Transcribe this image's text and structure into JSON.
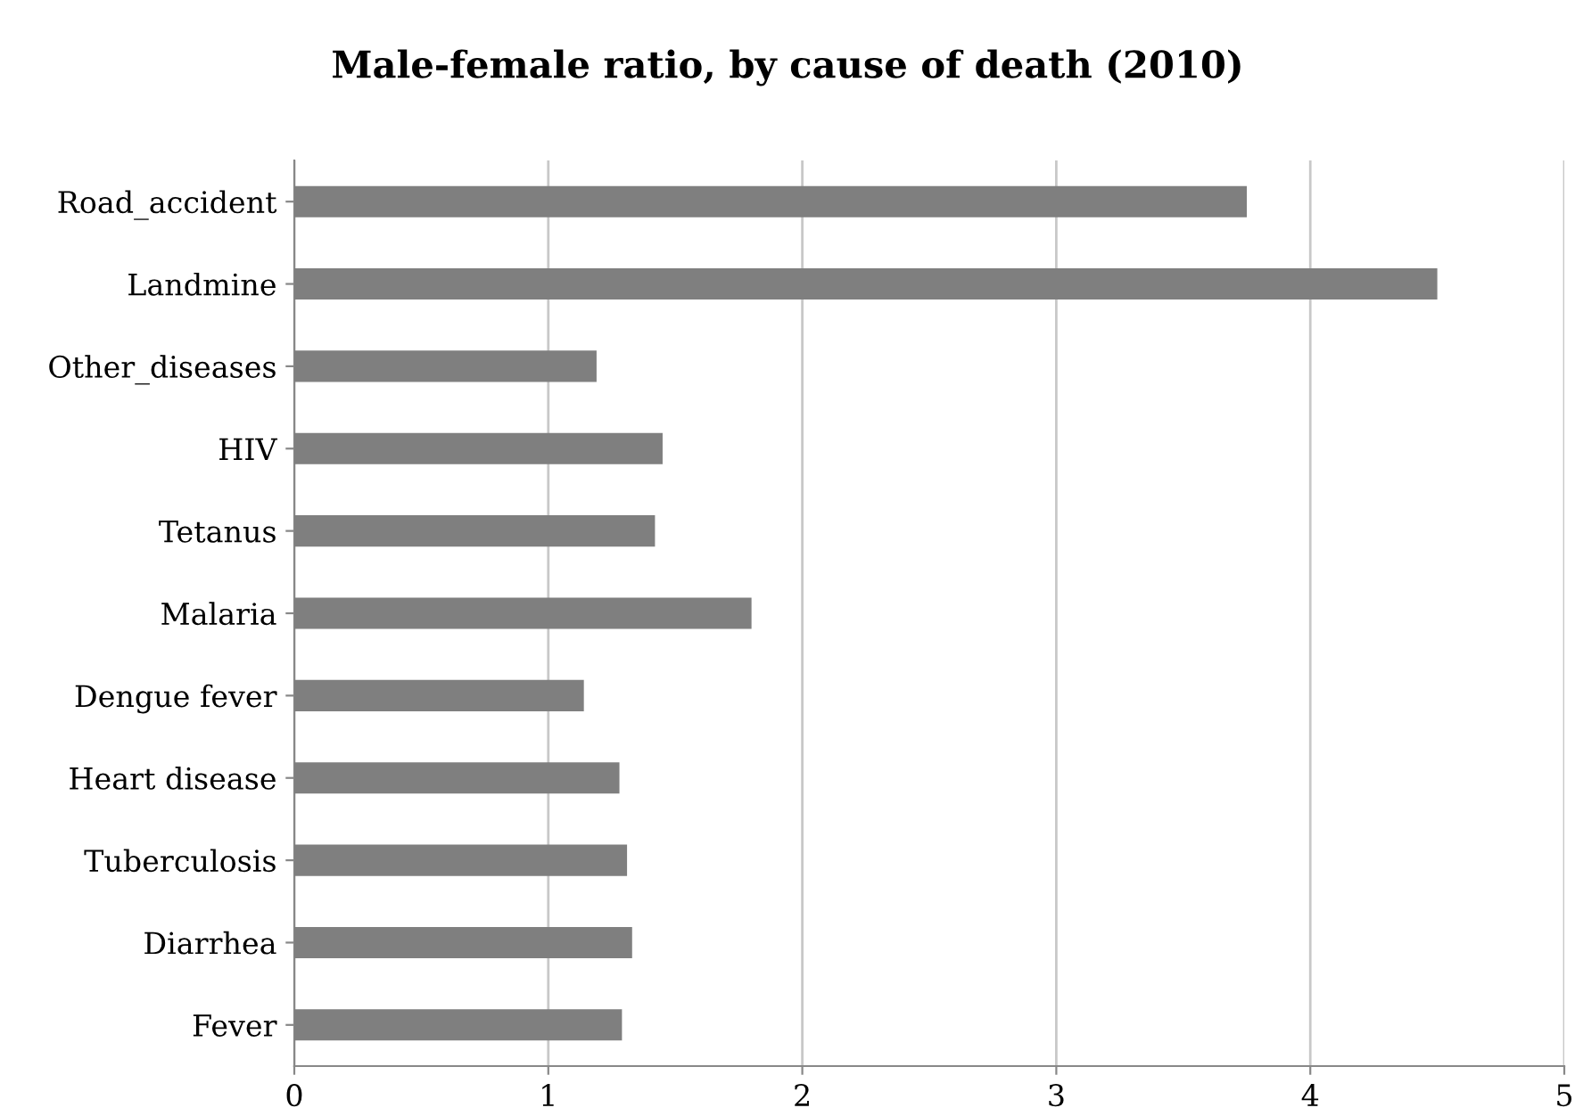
{
  "chart_data": {
    "type": "bar",
    "orientation": "horizontal",
    "title": "Male-female ratio, by cause of death (2010)",
    "categories": [
      "Road_accident",
      "Landmine",
      "Other_diseases",
      "HIV",
      "Tetanus",
      "Malaria",
      "Dengue fever",
      "Heart disease",
      "Tuberculosis",
      "Diarrhea",
      "Fever"
    ],
    "values": [
      3.75,
      4.5,
      1.19,
      1.45,
      1.42,
      1.8,
      1.14,
      1.28,
      1.31,
      1.33,
      1.29
    ],
    "color": "#7f7f7f",
    "xlim": [
      0,
      5
    ],
    "xticks": [
      0,
      1,
      2,
      3,
      4,
      5
    ],
    "grid": "x",
    "legend": false
  }
}
